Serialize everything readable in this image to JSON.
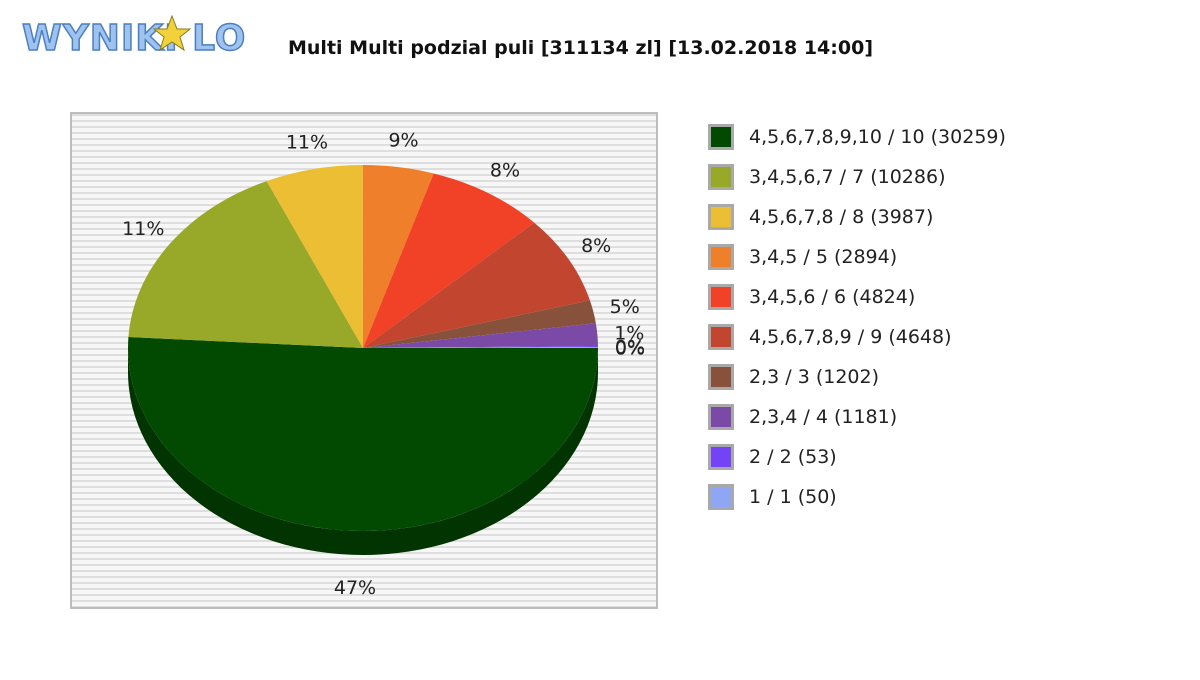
{
  "header": {
    "logo_text": "WYNIKI LOTTO",
    "title": "Multi Multi podzial puli [311134 zl] [13.02.2018 14:00]"
  },
  "chart_data": {
    "type": "pie",
    "title": "Multi Multi podzial puli [311134 zl] [13.02.2018 14:00]",
    "legend_position": "right",
    "slices": [
      {
        "label": "4,5,6,7,8,9,10 / 10 (30259)",
        "value": 30259,
        "pct_label": "47%",
        "color": "#024a02"
      },
      {
        "label": "3,4,5,6,7 / 7 (10286)",
        "value": 10286,
        "pct_label": "11%",
        "color": "#98a828"
      },
      {
        "label": "4,5,6,7,8 / 8 (3987)",
        "value": 3987,
        "pct_label": "11%",
        "color": "#ebbe34"
      },
      {
        "label": "3,4,5 / 5 (2894)",
        "value": 2894,
        "pct_label": "9%",
        "color": "#ef7f2a"
      },
      {
        "label": "3,4,5,6 / 6 (4824)",
        "value": 4824,
        "pct_label": "8%",
        "color": "#f14127"
      },
      {
        "label": "4,5,6,7,8,9 / 9 (4648)",
        "value": 4648,
        "pct_label": "8%",
        "color": "#c2452f"
      },
      {
        "label": "2,3 / 3 (1202)",
        "value": 1202,
        "pct_label": "5%",
        "color": "#87513c"
      },
      {
        "label": "2,3,4 / 4 (1181)",
        "value": 1181,
        "pct_label": "1%",
        "color": "#7a4aa6"
      },
      {
        "label": "2 / 2 (53)",
        "value": 53,
        "pct_label": "0%",
        "color": "#7343f5"
      },
      {
        "label": "1 / 1 (50)",
        "value": 50,
        "pct_label": "0%",
        "color": "#8ea6f4"
      }
    ]
  }
}
